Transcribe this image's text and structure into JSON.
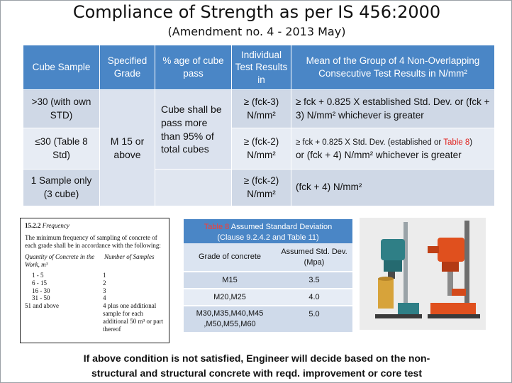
{
  "title": "Compliance of Strength as per IS 456:2000",
  "subtitle": "(Amendment no. 4 - 2013 May)",
  "table": {
    "headers": [
      "Cube Sample",
      "Specified Grade",
      "% age of cube pass",
      "Individual Test Results in",
      "Mean of the Group of 4 Non-Overlapping Consecutive Test Results in N/mm²"
    ],
    "rows": [
      {
        "sample": ">30 (with own STD)",
        "individual": "≥ (fck-3) N/mm²",
        "mean": "≥ fck + 0.825 X established Std. Dev. or (fck + 3) N/mm² whichever is greater"
      },
      {
        "sample": "≤30 (Table 8 Std)",
        "individual": "≥ (fck-2) N/mm²",
        "mean_part1": "≥ fck + 0.825 X Std. Dev. (established or ",
        "mean_red": "Table 8",
        "mean_part2": ")",
        "mean_line2": "or (fck + 4) N/mm² whichever is greater"
      },
      {
        "sample": "1 Sample only (3 cube)",
        "individual": "≥ (fck-2) N/mm²",
        "mean": "(fck + 4) N/mm²"
      }
    ],
    "grade": "M 15 or above",
    "pass": "Cube shall be pass more than 95% of total cubes"
  },
  "excerpt": {
    "number": "15.2.2",
    "heading": "Frequency",
    "text": "The minimum frequency of sampling of concrete of each grade shall be in accordance with the following:",
    "col1": "Quantity of Concrete in the Work, m³",
    "col2": "Number of Samples",
    "rows": [
      {
        "q": "1 - 5",
        "n": "1"
      },
      {
        "q": "6 - 15",
        "n": "2"
      },
      {
        "q": "16 - 30",
        "n": "3"
      },
      {
        "q": "31 - 50",
        "n": "4"
      },
      {
        "q": "51 and above",
        "n": "4 plus one additional sample for each additional 50 m³ or part thereof"
      }
    ]
  },
  "deviation": {
    "caption_red": "Table 8",
    "caption_title": "Assumed Standard Deviation",
    "caption_ref": "(Clause 9.2.4.2 and Table 11)",
    "col1": "Grade of concrete",
    "col2": "Assumed Std. Dev.(Mpa)",
    "rows": [
      {
        "grade": "M15",
        "dev": "3.5"
      },
      {
        "grade": "M20,M25",
        "dev": "4.0"
      },
      {
        "grade": "M30,M35,M40,M45 ,M50,M55,M60",
        "dev": "5.0"
      }
    ]
  },
  "footer": {
    "line1": "If above condition is not satisfied, Engineer will decide based on the non-",
    "line2": "structural and structural concrete with reqd. improvement or core test"
  },
  "colors": {
    "header_blue": "#4a86c6",
    "row_dark": "#cfd8e6",
    "row_light": "#e7ecf4",
    "accent_red": "#e0201c",
    "drill_teal": "#2f7f86",
    "drill_orange": "#e0501e"
  }
}
